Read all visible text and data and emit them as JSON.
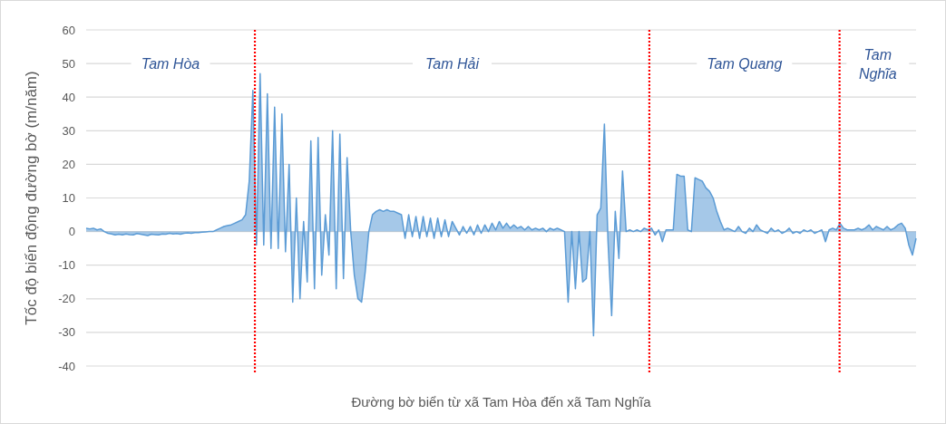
{
  "chart_data": {
    "type": "area",
    "xlabel": "Đường bờ biển từ xã Tam Hòa đến xã Tam Nghĩa",
    "ylabel": "Tốc độ biến động đường bờ (m/năm)",
    "categories": [
      null,
      null,
      null,
      null,
      null,
      null,
      null,
      null,
      null,
      null,
      null,
      null,
      null,
      null,
      null,
      null,
      null,
      null,
      null,
      null,
      null,
      null,
      null,
      null,
      null,
      null,
      null,
      null,
      null,
      null,
      null,
      null,
      null,
      null,
      null,
      null,
      null,
      null,
      null,
      null,
      null,
      null,
      null,
      null,
      null,
      null,
      null,
      null,
      null,
      null,
      null,
      null,
      null,
      null,
      null,
      null,
      null,
      null,
      null,
      null,
      null,
      null,
      null,
      null,
      null,
      null,
      null,
      null,
      null,
      null,
      null,
      null,
      null,
      null,
      null,
      null,
      null,
      null,
      null,
      null,
      null,
      null,
      null,
      null,
      null,
      null,
      null,
      null,
      null,
      null,
      null,
      null,
      null,
      null,
      null,
      null,
      null,
      null,
      null,
      null,
      null,
      null,
      null,
      null,
      null,
      null,
      null,
      null,
      null,
      null,
      null,
      null,
      null,
      null,
      null,
      null,
      null,
      null,
      null,
      null,
      null,
      null,
      null,
      null,
      null,
      null,
      null,
      null,
      null,
      null,
      null,
      null,
      null,
      null,
      null,
      null,
      null,
      null,
      null,
      null,
      null,
      null,
      null,
      null,
      null,
      null,
      null,
      null,
      null,
      null,
      null,
      null,
      null,
      null,
      null,
      null,
      null,
      null,
      null,
      null,
      null,
      null,
      null,
      null,
      null,
      null,
      null,
      null,
      null,
      null,
      null,
      null,
      null,
      null,
      null,
      null,
      null,
      null,
      null,
      null,
      null,
      null,
      null,
      null,
      null,
      null,
      null,
      null,
      null,
      null,
      null,
      null,
      null,
      null,
      null,
      null,
      null,
      null,
      null,
      null,
      null,
      null,
      null,
      null,
      null,
      null,
      null,
      null,
      null,
      null,
      null,
      null,
      null,
      null,
      null,
      null,
      null,
      null,
      null,
      null,
      null,
      null,
      null,
      null,
      null,
      null,
      null,
      null,
      null,
      null
    ],
    "values": [
      1,
      0.8,
      1,
      0.5,
      0.8,
      0,
      -0.5,
      -0.7,
      -1,
      -0.8,
      -1,
      -0.7,
      -0.9,
      -1,
      -0.6,
      -0.8,
      -1,
      -1.2,
      -0.8,
      -0.9,
      -1,
      -0.7,
      -0.8,
      -0.5,
      -0.7,
      -0.6,
      -0.8,
      -0.5,
      -0.4,
      -0.5,
      -0.3,
      -0.3,
      -0.2,
      -0.1,
      0,
      0,
      0.5,
      1,
      1.5,
      1.8,
      2,
      2.5,
      3,
      3.5,
      5,
      15,
      42,
      -4,
      47,
      -4,
      41,
      -5,
      37,
      -5,
      35,
      -6,
      20,
      -21,
      10,
      -20,
      3,
      -15,
      27,
      -17,
      28,
      -13,
      5,
      -7,
      30,
      -17,
      29,
      -14,
      22,
      0,
      -13,
      -20,
      -21,
      -12,
      0,
      5,
      6,
      6.5,
      6,
      6.5,
      6,
      6,
      5.5,
      5,
      -2,
      5,
      -1.5,
      4.5,
      -2,
      4.5,
      -1.5,
      4,
      -2,
      4,
      -1.5,
      3.5,
      -1.5,
      3,
      1,
      -1,
      1.5,
      -0.5,
      1.5,
      -1,
      2,
      -0.5,
      2,
      0,
      2.5,
      0.5,
      3,
      1,
      2.5,
      1,
      2,
      1,
      1.5,
      0.5,
      1.5,
      0.5,
      1,
      0.5,
      1,
      0,
      1,
      0.5,
      1,
      0.5,
      0,
      -21,
      0,
      -17,
      0,
      -15,
      -14,
      0,
      -31,
      5,
      7,
      32,
      -3,
      -25,
      6,
      -8,
      18,
      0,
      0.5,
      0,
      0.5,
      0,
      1,
      0.5,
      1,
      -1,
      0.5,
      -3,
      0.5,
      0.5,
      0.5,
      17,
      16.5,
      16.5,
      0.5,
      0,
      16,
      15.5,
      15,
      13,
      12,
      10,
      6,
      3,
      0.5,
      1,
      0.5,
      0,
      1.5,
      0,
      -0.5,
      1,
      0,
      2,
      0.5,
      0,
      -0.5,
      1,
      0,
      0.5,
      -0.5,
      0,
      1,
      -0.5,
      0,
      -0.5,
      0.5,
      0,
      0.5,
      -0.5,
      0,
      0.5,
      -3,
      0.5,
      1,
      0.5,
      2.5,
      1,
      0.5,
      0.5,
      0.5,
      1,
      0.5,
      1,
      2,
      0.5,
      1.5,
      1,
      0.5,
      1.5,
      0.5,
      1,
      2,
      2.5,
      1,
      -4,
      -7,
      -2
    ],
    "color": "#5b9bd5",
    "ylim": [
      -40,
      60
    ],
    "yticks": [
      -40,
      -30,
      -20,
      -10,
      0,
      10,
      20,
      30,
      40,
      50,
      60
    ],
    "grid": "y",
    "tick_labels": "y",
    "annotations": [
      "Tam Hòa",
      "Tam Hải",
      "Tam Quang",
      "Tam Nghĩa"
    ]
  }
}
